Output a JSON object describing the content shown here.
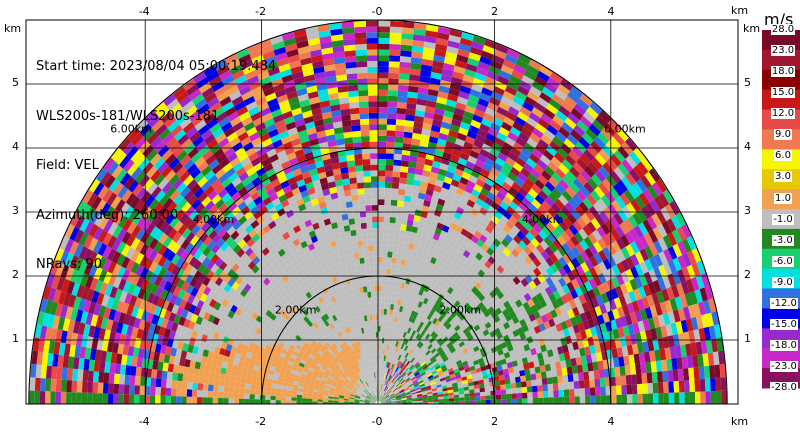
{
  "info": {
    "start_time": "Start time: 2023/08/04 05:00:19.484",
    "instrument": "WLS200s-181/WLS200s-181",
    "field": "Field: VEL",
    "azimuth": "Azimuth(deg): 260.00",
    "nrays": "NRays: 90"
  },
  "axes": {
    "x_unit": "km",
    "y_unit": "km",
    "x_ticks": [
      "-4",
      "-2",
      "-0",
      "2",
      "4"
    ],
    "y_ticks": [
      "1",
      "2",
      "3",
      "4",
      "5"
    ],
    "range_rings": [
      "2.00km",
      "4.00km",
      "6.00km"
    ]
  },
  "colorbar": {
    "unit": "m/s",
    "labels": [
      "28.0",
      "23.0",
      "18.0",
      "15.0",
      "12.0",
      "9.0",
      "6.0",
      "3.0",
      "1.0",
      "-1.0",
      "-3.0",
      "-6.0",
      "-9.0",
      "-12.0",
      "-15.0",
      "-18.0",
      "-23.0",
      "-28.0"
    ],
    "colors": [
      "#7a0a2a",
      "#a0172e",
      "#8a0000",
      "#c81818",
      "#e84a4a",
      "#f07a50",
      "#f6f600",
      "#e8c800",
      "#f0a050",
      "#bebebe",
      "#208a20",
      "#18d070",
      "#00e0e0",
      "#3070e0",
      "#0000e8",
      "#9828d0",
      "#c828c8",
      "#8a1060"
    ]
  },
  "chart_data": {
    "type": "heatmap",
    "field": "VEL",
    "units": "m/s",
    "azimuth_deg": 260.0,
    "n_rays": 90,
    "xlim": [
      -6,
      6
    ],
    "ylim": [
      0,
      6
    ],
    "xlabel": "km",
    "ylabel": "km",
    "range_rings_km": [
      2,
      4,
      6
    ],
    "max_range_km": 6
  }
}
